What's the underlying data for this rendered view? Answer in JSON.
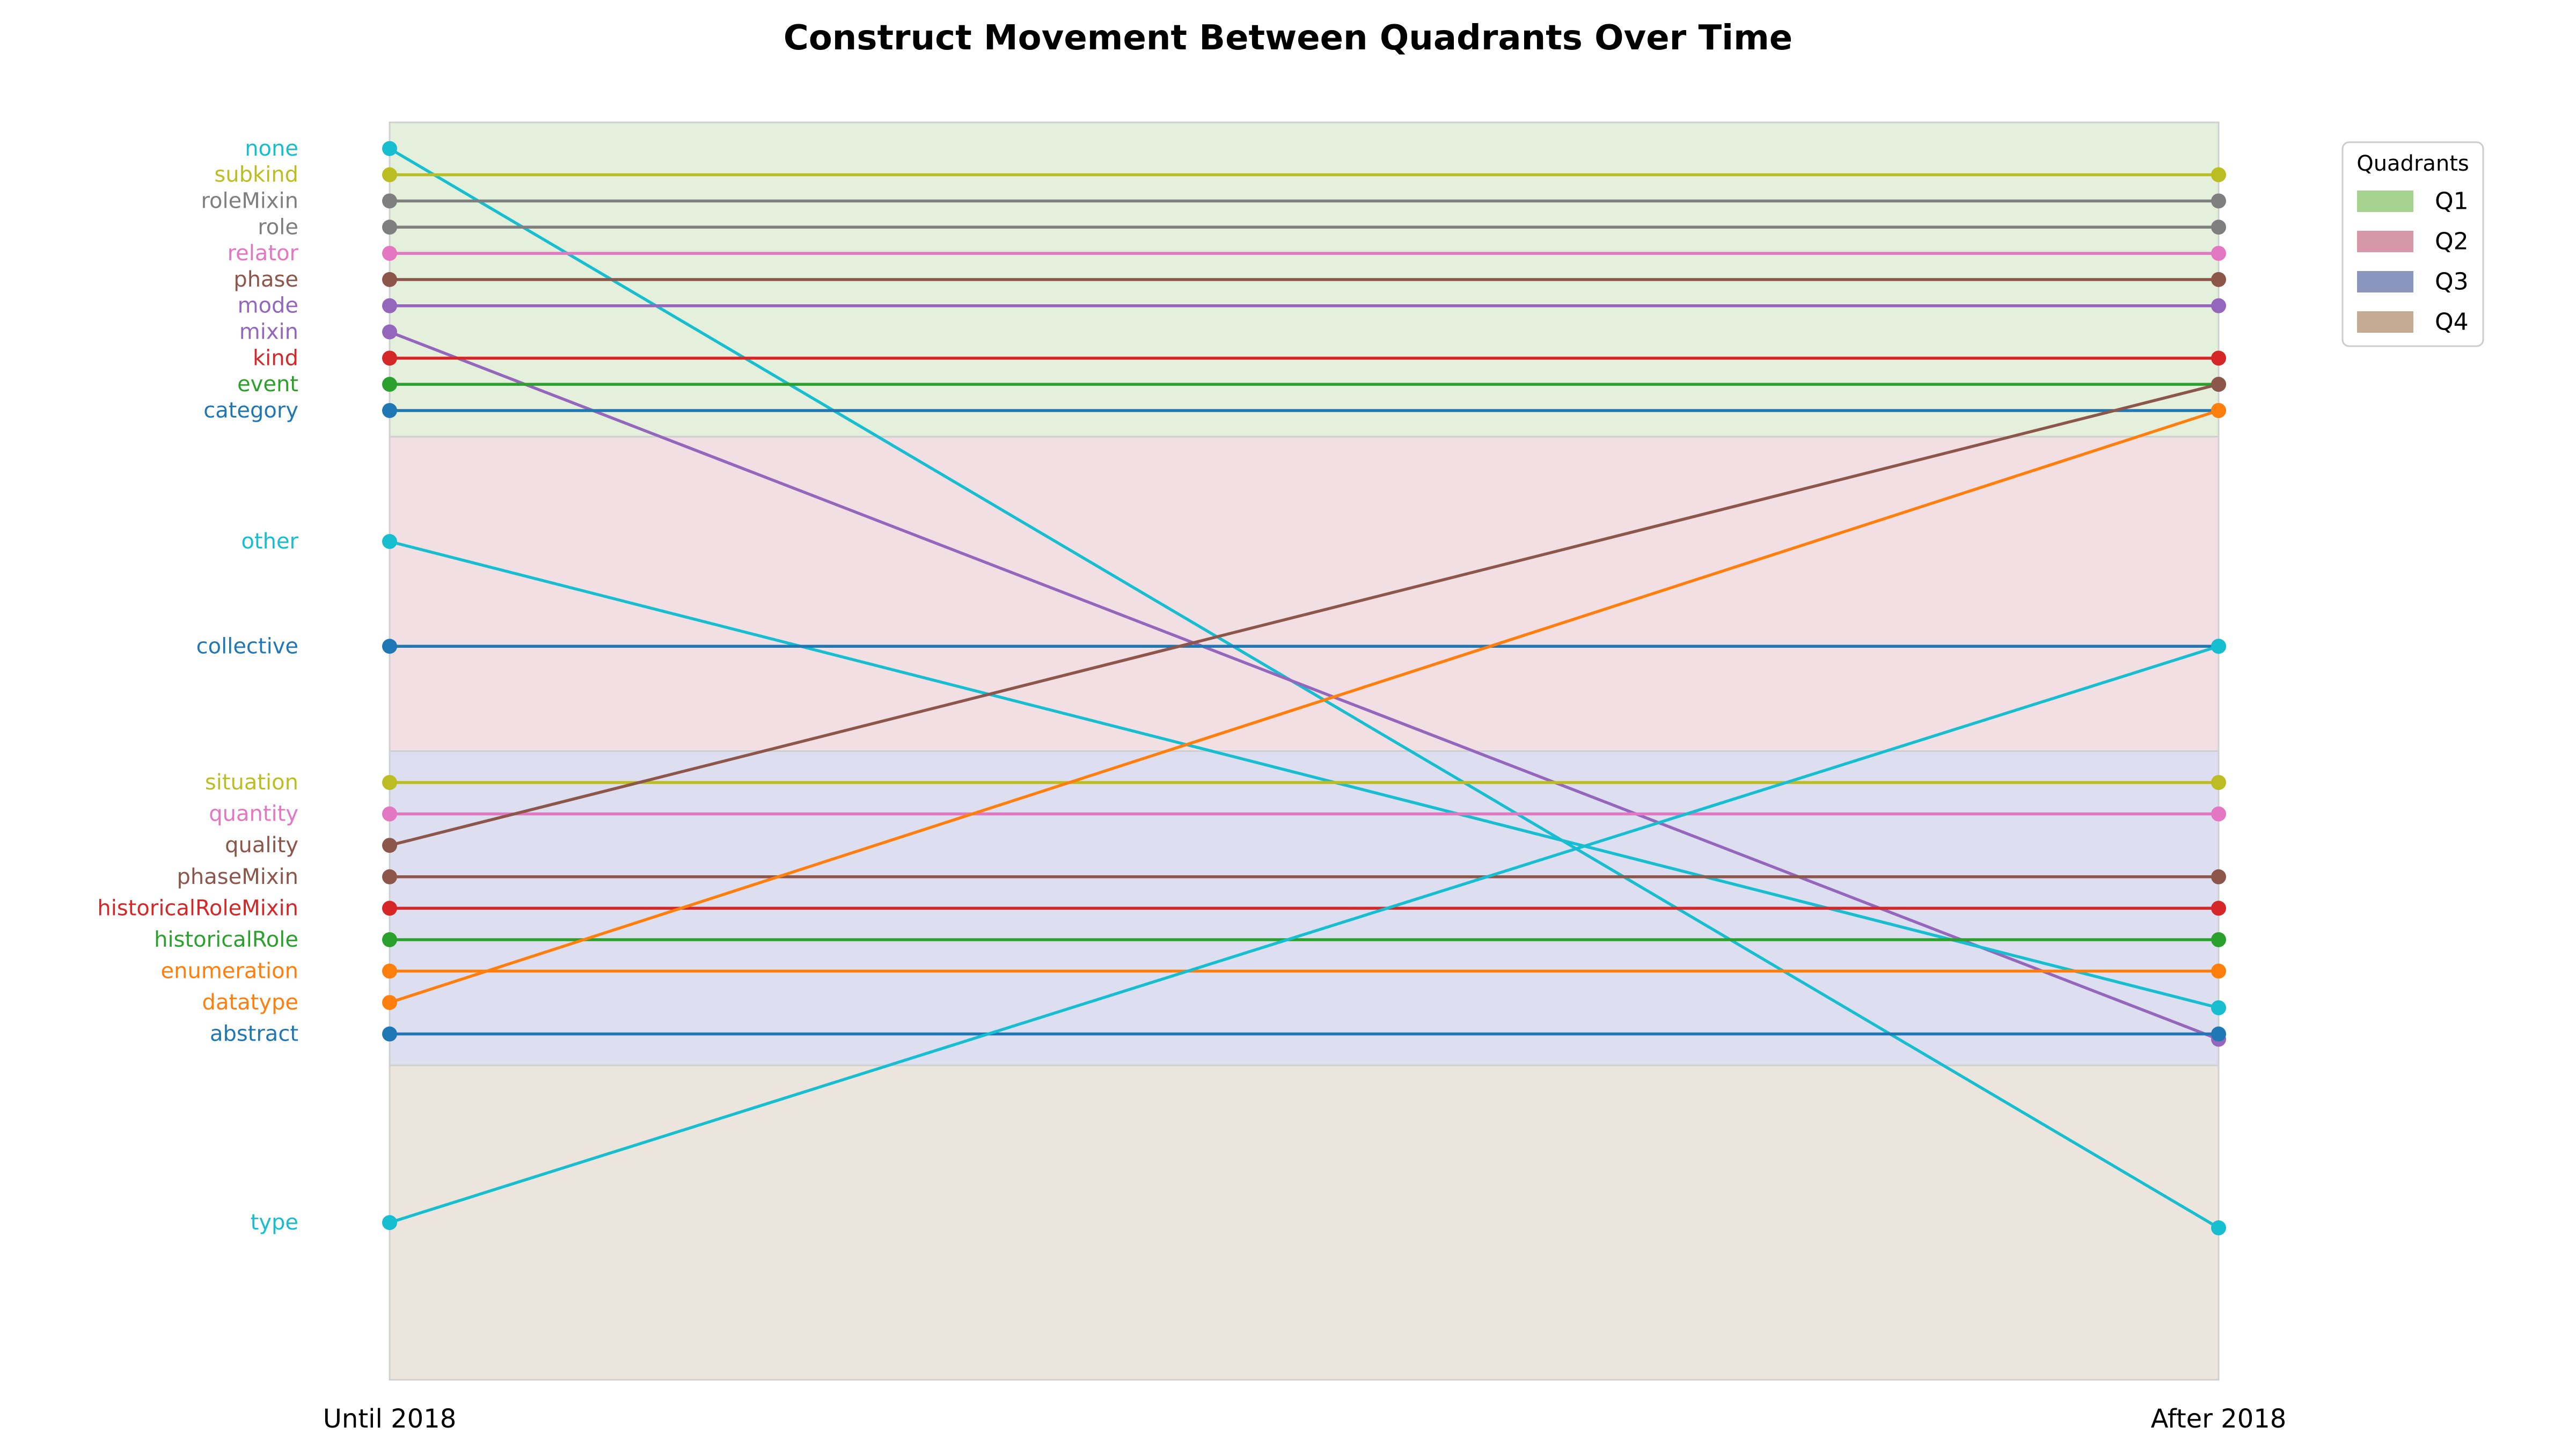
{
  "chart_data": {
    "type": "slope",
    "title": "Construct Movement Between Quadrants Over Time",
    "x_categories": [
      "Until 2018",
      "After 2018"
    ],
    "legend": {
      "title": "Quadrants",
      "placement": "top-right",
      "items": [
        {
          "name": "Q1",
          "color": "#a6d28f"
        },
        {
          "name": "Q2",
          "color": "#d697a8"
        },
        {
          "name": "Q3",
          "color": "#8a96bd"
        },
        {
          "name": "Q4",
          "color": "#c4ab93"
        }
      ]
    },
    "quadrants": [
      {
        "name": "Q1",
        "fill": "#e4f0dc",
        "y_range": [
          0,
          12
        ]
      },
      {
        "name": "Q2",
        "fill": "#f1dfe4",
        "y_range": [
          12,
          24
        ]
      },
      {
        "name": "Q3",
        "fill": "#dddff0",
        "y_range": [
          24,
          36
        ]
      },
      {
        "name": "Q4",
        "fill": "#ebe5dd",
        "y_range": [
          36,
          48
        ]
      }
    ],
    "y_axis": {
      "range": [
        0,
        48
      ],
      "inverted": true
    },
    "series": [
      {
        "name": "none",
        "color": "#17becf",
        "until": 1,
        "after": 42.2
      },
      {
        "name": "subkind",
        "color": "#bcbd22",
        "until": 2,
        "after": 2
      },
      {
        "name": "roleMixin",
        "color": "#7f7f7f",
        "until": 3,
        "after": 3
      },
      {
        "name": "role",
        "color": "#7f7f7f",
        "until": 4,
        "after": 4
      },
      {
        "name": "relator",
        "color": "#e377c2",
        "until": 5,
        "after": 5
      },
      {
        "name": "phase",
        "color": "#8c564b",
        "until": 6,
        "after": 6
      },
      {
        "name": "mode",
        "color": "#9467bd",
        "until": 7,
        "after": 7
      },
      {
        "name": "mixin",
        "color": "#9467bd",
        "until": 8,
        "after": 35
      },
      {
        "name": "kind",
        "color": "#d62728",
        "until": 9,
        "after": 9
      },
      {
        "name": "event",
        "color": "#2ca02c",
        "until": 10,
        "after": 10
      },
      {
        "name": "category",
        "color": "#1f77b4",
        "until": 11,
        "after": 11
      },
      {
        "name": "other",
        "color": "#17becf",
        "until": 16,
        "after": 33.8
      },
      {
        "name": "collective",
        "color": "#1f77b4",
        "until": 20,
        "after": 20
      },
      {
        "name": "situation",
        "color": "#bcbd22",
        "until": 25.2,
        "after": 25.2
      },
      {
        "name": "quantity",
        "color": "#e377c2",
        "until": 26.4,
        "after": 26.4
      },
      {
        "name": "quality",
        "color": "#8c564b",
        "until": 27.6,
        "after": 10
      },
      {
        "name": "phaseMixin",
        "color": "#8c564b",
        "until": 28.8,
        "after": 28.8
      },
      {
        "name": "historicalRoleMixin",
        "color": "#d62728",
        "until": 30,
        "after": 30
      },
      {
        "name": "historicalRole",
        "color": "#2ca02c",
        "until": 31.2,
        "after": 31.2
      },
      {
        "name": "enumeration",
        "color": "#ff7f0e",
        "until": 32.4,
        "after": 32.4
      },
      {
        "name": "datatype",
        "color": "#ff7f0e",
        "until": 33.6,
        "after": 11
      },
      {
        "name": "abstract",
        "color": "#1f77b4",
        "until": 34.8,
        "after": 34.8
      },
      {
        "name": "type",
        "color": "#17becf",
        "until": 42,
        "after": 20
      }
    ]
  }
}
